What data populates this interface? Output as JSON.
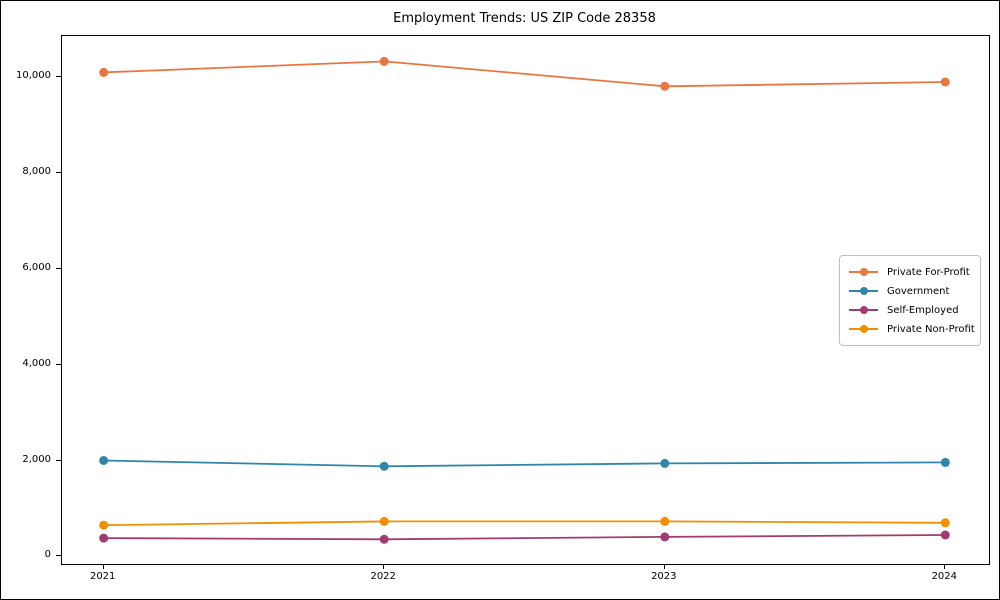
{
  "chart_data": {
    "type": "line",
    "title": "Employment Trends: US ZIP Code 28358",
    "categories": [
      "2021",
      "2022",
      "2023",
      "2024"
    ],
    "series": [
      {
        "name": "Private For-Profit",
        "color": "#E8763F",
        "values": [
          10100,
          10330,
          9810,
          9900
        ]
      },
      {
        "name": "Government",
        "color": "#2E86AB",
        "values": [
          2000,
          1880,
          1940,
          1960
        ]
      },
      {
        "name": "Self-Employed",
        "color": "#A23B72",
        "values": [
          380,
          355,
          405,
          445
        ]
      },
      {
        "name": "Private Non-Profit",
        "color": "#F18F01",
        "values": [
          650,
          730,
          730,
          700
        ]
      }
    ],
    "xlabel": "",
    "ylabel": "",
    "ylim": [
      -160,
      10860
    ],
    "yticks": [
      0,
      2000,
      4000,
      6000,
      8000,
      10000
    ],
    "ytick_labels": [
      "0",
      "2,000",
      "4,000",
      "6,000",
      "8,000",
      "10,000"
    ],
    "grid": false,
    "legend_position": "center-right",
    "marker": "circle"
  }
}
